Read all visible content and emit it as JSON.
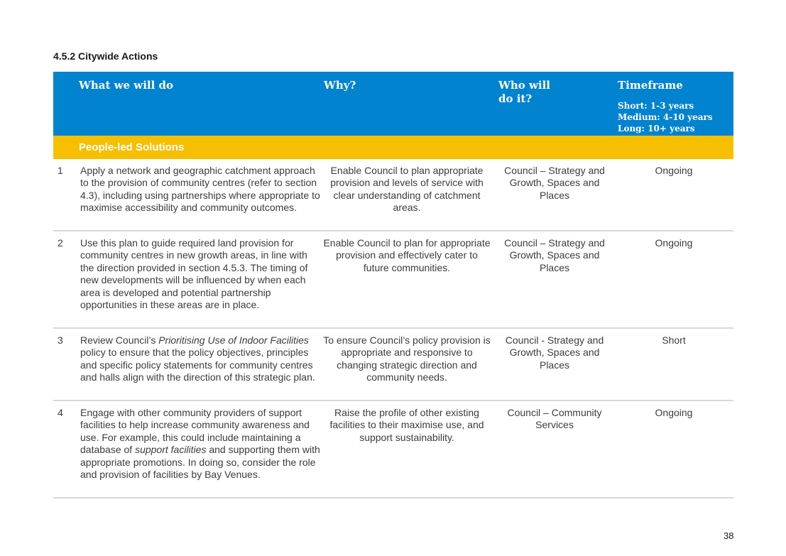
{
  "section_heading": "4.5.2 Citywide Actions",
  "table": {
    "headers": {
      "what": "What we will do",
      "why": "Why?",
      "who": "Who will do it?",
      "timeframe": "Timeframe",
      "timeframe_short": "Short: 1-3 years",
      "timeframe_medium": "Medium: 4-10 years",
      "timeframe_long": "Long: 10+ years"
    },
    "section_label": "People-led Solutions",
    "rows": [
      {
        "num": "1",
        "what": "Apply a network and geographic catchment approach to the provision of community centres (refer to section 4.3), including using partnerships where appropriate to maximise accessibility and community outcomes.",
        "why": "Enable Council to plan appropriate provision and levels of service with clear understanding of catchment areas.",
        "who": "Council – Strategy and Growth, Spaces and Places",
        "when": "Ongoing"
      },
      {
        "num": "2",
        "what": "Use this plan to guide required land provision for community centres in new growth areas, in line with the direction provided in section 4.5.3. The timing of new developments will be influenced by when each area is developed and potential partnership opportunities in these areas are in place.",
        "why": "Enable Council to plan for appropriate provision and effectively cater to future communities.",
        "who": "Council – Strategy and Growth, Spaces and Places",
        "when": "Ongoing"
      },
      {
        "num": "3",
        "what_pre": "Review Council’s ",
        "what_italic": "Prioritising Use of Indoor Facilities",
        "what_post": " policy to ensure that the policy objectives, principles and specific policy statements for community centres and halls align with the direction of this strategic plan.",
        "why": "To ensure Council’s policy provision is appropriate and responsive to changing strategic direction and community needs.",
        "who": "Council - Strategy and Growth, Spaces and Places",
        "when": "Short"
      },
      {
        "num": "4",
        "what_pre": "Engage with other community providers of support facilities to help increase community awareness and use. For example, this could include maintaining a database of ",
        "what_italic": "support facilities",
        "what_post": " and supporting them with appropriate promotions. In doing so, consider the role and provision of facilities by Bay Venues.",
        "why": "Raise the profile of other existing facilities to their maximise use, and support sustainability.",
        "who": "Council – Community Services",
        "when": "Ongoing"
      }
    ]
  },
  "page_number": "38",
  "colors": {
    "header_blue": "#0283cf",
    "section_yellow": "#f6bf00"
  }
}
